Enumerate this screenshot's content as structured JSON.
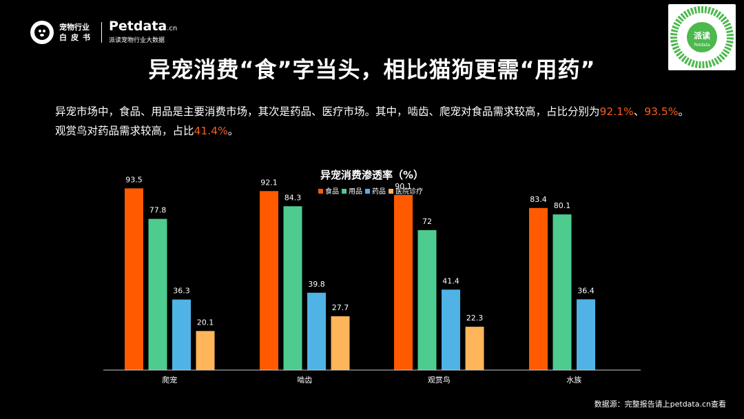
{
  "header": {
    "logo_line1": "宠物行业",
    "logo_line2": "白皮书",
    "brand_name": "Petdata",
    "brand_suffix": ".cn",
    "brand_sub": "派读宠物行业大数据"
  },
  "qr": {
    "label": "派读",
    "sub": "Petdata"
  },
  "title": "异宠消费“食”字当头，相比猫狗更需“用药”",
  "description": {
    "p1": "异宠市场中，食品、用品是主要消费市场，其次是药品、医疗市场。其中，啮齿、爬宠对食品需求较高，占比分别为",
    "hl1": "92.1%",
    "sep": "、",
    "hl2": "93.5%",
    "p2": "。",
    "p3": "观赏鸟对药品需求较高，占比",
    "hl3": "41.4%",
    "p4": "。"
  },
  "chart_data": {
    "type": "bar",
    "title": "异宠消费渗透率（%）",
    "categories": [
      "爬宠",
      "啮齿",
      "观赏鸟",
      "水族"
    ],
    "series": [
      {
        "name": "食品",
        "color": "#ff5a00",
        "values": [
          93.5,
          92.1,
          90.1,
          83.4
        ]
      },
      {
        "name": "用品",
        "color": "#4ecb8f",
        "values": [
          77.8,
          84.3,
          72,
          80.1
        ]
      },
      {
        "name": "药品",
        "color": "#4fb3e6",
        "values": [
          36.3,
          39.8,
          41.4,
          36.4
        ]
      },
      {
        "name": "医院诊疗",
        "color": "#ffb55a",
        "values": [
          20.1,
          27.7,
          22.3,
          null
        ]
      }
    ],
    "ylim": [
      0,
      100
    ],
    "grid": false,
    "legend": "top-center"
  },
  "source": "数据源：完整报告请上petdata.cn查看"
}
